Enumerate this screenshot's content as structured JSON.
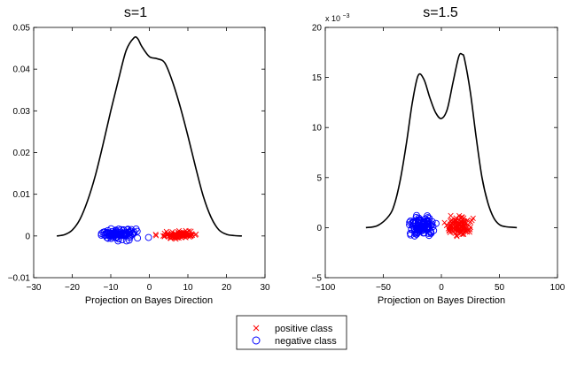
{
  "chart_data": [
    {
      "type": "line+scatter",
      "title": "s=1",
      "xlabel": "Projection on Bayes Direction",
      "ylabel": "",
      "xlim": [
        -30,
        30
      ],
      "ylim": [
        -0.01,
        0.05
      ],
      "x_ticks": [
        -30,
        -20,
        -10,
        0,
        10,
        20,
        30
      ],
      "y_ticks": [
        -0.01,
        0,
        0.01,
        0.02,
        0.03,
        0.04,
        0.05
      ],
      "x_tick_labels": [
        "−30",
        "−20",
        "−10",
        "0",
        "10",
        "20",
        "30"
      ],
      "y_tick_labels": [
        "−0.01",
        "0",
        "0.01",
        "0.02",
        "0.03",
        "0.04",
        "0.05"
      ],
      "y_exponent_label": "",
      "density_curve": {
        "name": "density",
        "color": "#000000",
        "x": [
          -24,
          -22,
          -20,
          -18,
          -16,
          -14,
          -12,
          -10,
          -8,
          -6,
          -4,
          -3,
          -2,
          0,
          2,
          4,
          6,
          8,
          10,
          12,
          14,
          16,
          18,
          20,
          22,
          24
        ],
        "y": [
          0,
          0.0003,
          0.0014,
          0.004,
          0.0085,
          0.0145,
          0.022,
          0.03,
          0.0375,
          0.0445,
          0.0475,
          0.0473,
          0.0455,
          0.043,
          0.0425,
          0.0415,
          0.037,
          0.031,
          0.024,
          0.0165,
          0.0095,
          0.0045,
          0.0015,
          0.0004,
          0.0001,
          0
        ]
      },
      "series": [
        {
          "name": "positive class",
          "marker": "x",
          "color": "#ff0000",
          "x_min": 1,
          "x_max": 14,
          "y_min": -0.001,
          "y_max": 0.0015,
          "count": 100
        },
        {
          "name": "negative class",
          "marker": "o",
          "color": "#0000ff",
          "x_min": -15,
          "x_max": 0,
          "y_min": -0.0014,
          "y_max": 0.0025,
          "count": 100
        }
      ]
    },
    {
      "type": "line+scatter",
      "title": "s=1.5",
      "xlabel": "Projection on Bayes Direction",
      "ylabel": "",
      "xlim": [
        -100,
        100
      ],
      "ylim": [
        -5,
        20
      ],
      "x_ticks": [
        -100,
        -50,
        0,
        50,
        100
      ],
      "y_ticks": [
        -5,
        0,
        5,
        10,
        15,
        20
      ],
      "x_tick_labels": [
        "−100",
        "−50",
        "0",
        "50",
        "100"
      ],
      "y_tick_labels": [
        "−5",
        "0",
        "5",
        "10",
        "15",
        "20"
      ],
      "y_exponent_label": "x 10",
      "y_exponent_power": "−3",
      "density_curve": {
        "name": "density",
        "color": "#000000",
        "x": [
          -65,
          -55,
          -45,
          -40,
          -35,
          -30,
          -25,
          -20,
          -15,
          -10,
          -5,
          0,
          5,
          10,
          15,
          18,
          20,
          25,
          30,
          35,
          40,
          45,
          50,
          55,
          65
        ],
        "y": [
          0,
          0.2,
          1.2,
          2.5,
          5,
          8.5,
          12.5,
          15.2,
          14.8,
          13,
          11.5,
          10.9,
          11.8,
          14.5,
          17.1,
          17.3,
          16.8,
          13.5,
          9,
          5,
          2.5,
          1,
          0.3,
          0.1,
          0
        ]
      },
      "series": [
        {
          "name": "positive class",
          "marker": "x",
          "color": "#ff0000",
          "x_min": 0,
          "x_max": 32,
          "y_min": -1.2,
          "y_max": 1.5,
          "count": 100
        },
        {
          "name": "negative class",
          "marker": "o",
          "color": "#0000ff",
          "x_min": -33,
          "x_max": 0,
          "y_min": -1.3,
          "y_max": 1.7,
          "count": 100
        }
      ]
    }
  ],
  "legend": {
    "placement": "bottom-center",
    "entries": [
      {
        "label": "positive class",
        "marker": "x",
        "color": "#ff0000"
      },
      {
        "label": "negative class",
        "marker": "o",
        "color": "#0000ff"
      }
    ]
  }
}
